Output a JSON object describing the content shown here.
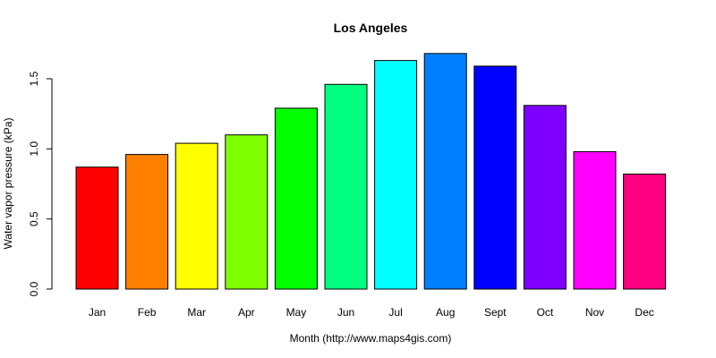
{
  "chart_data": {
    "type": "bar",
    "title": "Los Angeles",
    "xlabel": "Month (http://www.maps4gis.com)",
    "ylabel": "Water vapor pressure (kPa)",
    "categories": [
      "Jan",
      "Feb",
      "Mar",
      "Apr",
      "May",
      "Jun",
      "Jul",
      "Aug",
      "Sept",
      "Oct",
      "Nov",
      "Dec"
    ],
    "values": [
      0.87,
      0.96,
      1.04,
      1.1,
      1.29,
      1.46,
      1.63,
      1.68,
      1.59,
      1.31,
      0.98,
      0.82
    ],
    "colors": [
      "#FF0000",
      "#FF8000",
      "#FFFF00",
      "#80FF00",
      "#00FF00",
      "#00FF80",
      "#00FFFF",
      "#0080FF",
      "#0000FF",
      "#8000FF",
      "#FF00FF",
      "#FF0080"
    ],
    "yticks": [
      "0.0",
      "0.5",
      "1.0",
      "1.5"
    ],
    "ytick_values": [
      0.0,
      0.5,
      1.0,
      1.5
    ],
    "ylim": [
      0,
      1.75
    ],
    "grid": false,
    "legend": null
  }
}
